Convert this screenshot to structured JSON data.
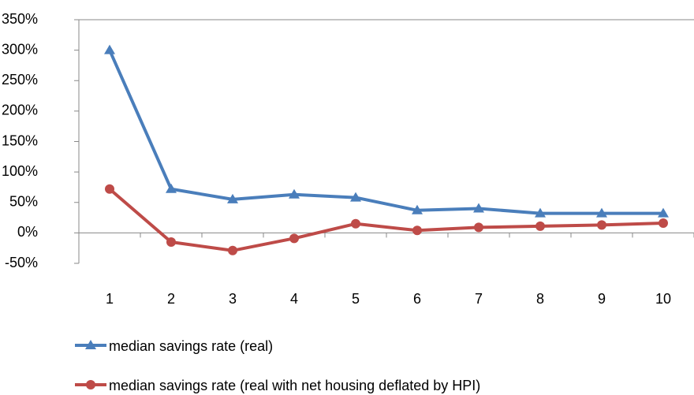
{
  "chart_data": {
    "type": "line",
    "categories": [
      "1",
      "2",
      "3",
      "4",
      "5",
      "6",
      "7",
      "8",
      "9",
      "10"
    ],
    "series": [
      {
        "name": "median savings rate (real)",
        "color": "#4a7ebb",
        "marker": "triangle",
        "values": [
          300,
          72,
          55,
          63,
          58,
          37,
          40,
          32,
          32,
          32
        ]
      },
      {
        "name": "median savings rate (real with net housing deflated by HPI)",
        "color": "#be4b48",
        "marker": "circle",
        "values": [
          72,
          -15,
          -29,
          -9,
          15,
          4,
          9,
          11,
          13,
          16
        ]
      }
    ],
    "ylim": [
      -50,
      350
    ],
    "yticks": [
      {
        "value": -50,
        "label": "-50%"
      },
      {
        "value": 0,
        "label": "0%"
      },
      {
        "value": 50,
        "label": "50%"
      },
      {
        "value": 100,
        "label": "100%"
      },
      {
        "value": 150,
        "label": "150%"
      },
      {
        "value": 200,
        "label": "200%"
      },
      {
        "value": 250,
        "label": "250%"
      },
      {
        "value": 300,
        "label": "300%"
      },
      {
        "value": 350,
        "label": "350%"
      }
    ],
    "grid": false,
    "legend": "bottom"
  }
}
